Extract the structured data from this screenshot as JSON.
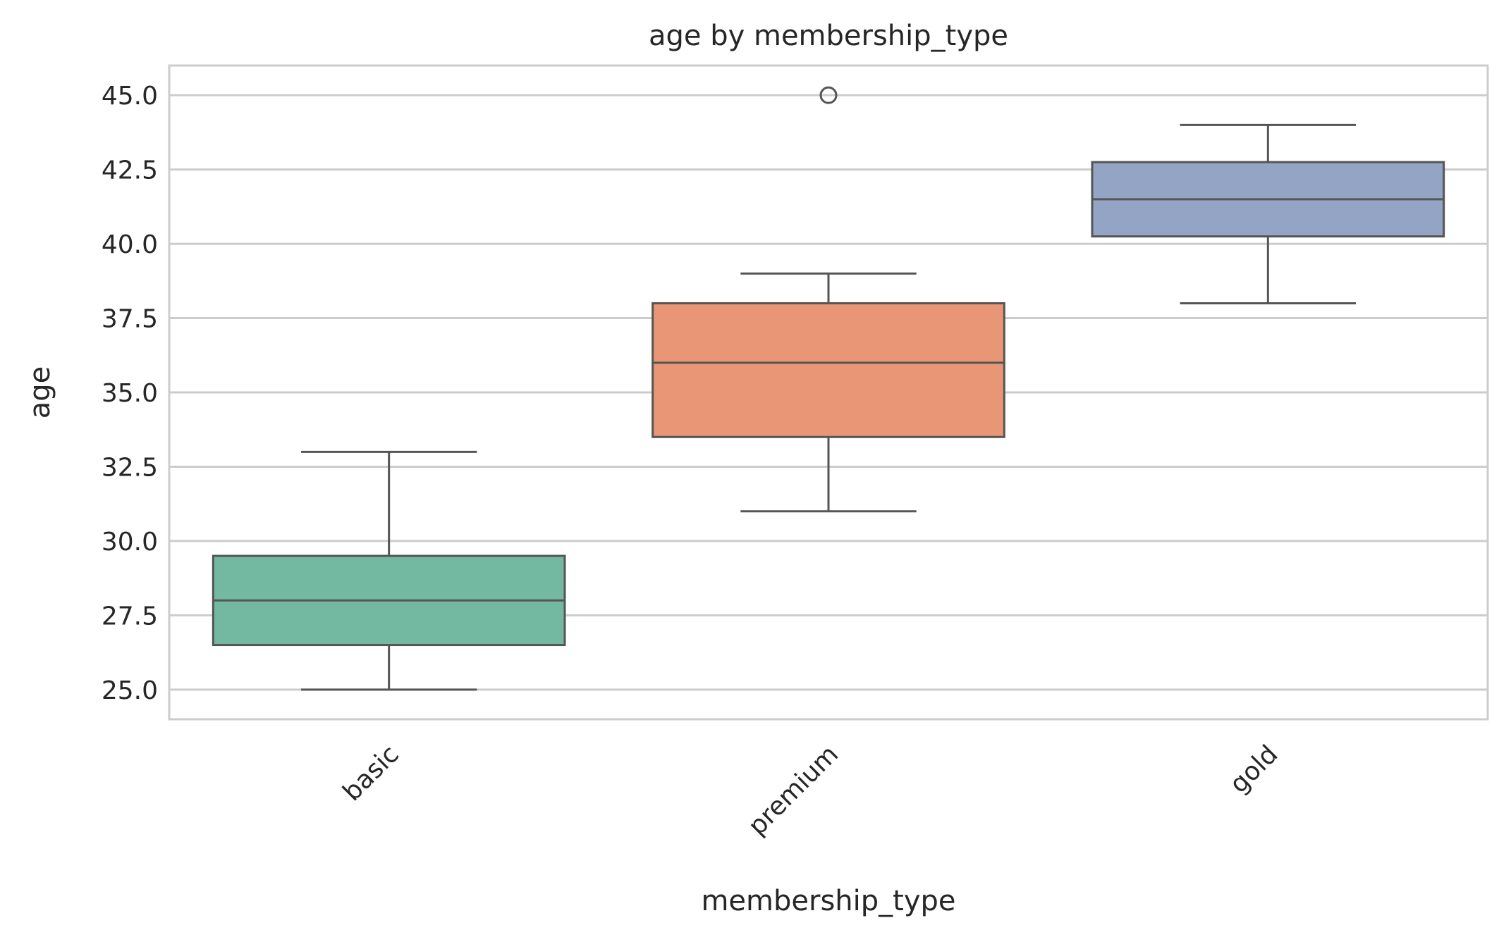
{
  "chart_data": {
    "type": "box",
    "title": "age by membership_type",
    "xlabel": "membership_type",
    "ylabel": "age",
    "ylim": [
      24.0,
      46.0
    ],
    "yticks": [
      25.0,
      27.5,
      30.0,
      32.5,
      35.0,
      37.5,
      40.0,
      42.5,
      45.0
    ],
    "ytick_labels": [
      "25.0",
      "27.5",
      "30.0",
      "32.5",
      "35.0",
      "37.5",
      "40.0",
      "42.5",
      "45.0"
    ],
    "grid": true,
    "categories": [
      "basic",
      "premium",
      "gold"
    ],
    "boxes": [
      {
        "category": "basic",
        "whisker_low": 25.0,
        "q1": 26.5,
        "median": 28.0,
        "q3": 29.5,
        "whisker_high": 33.0,
        "outliers": [],
        "color": "#73b8a1"
      },
      {
        "category": "premium",
        "whisker_low": 31.0,
        "q1": 33.5,
        "median": 36.0,
        "q3": 38.0,
        "whisker_high": 39.0,
        "outliers": [
          45.0
        ],
        "color": "#e89675"
      },
      {
        "category": "gold",
        "whisker_low": 38.0,
        "q1": 40.25,
        "median": 41.5,
        "q3": 42.75,
        "whisker_high": 44.0,
        "outliers": [],
        "color": "#94a4c4"
      }
    ],
    "colors": {
      "line": "#555555",
      "grid": "#cccccc",
      "frame": "#cccccc",
      "text": "#262626"
    }
  }
}
